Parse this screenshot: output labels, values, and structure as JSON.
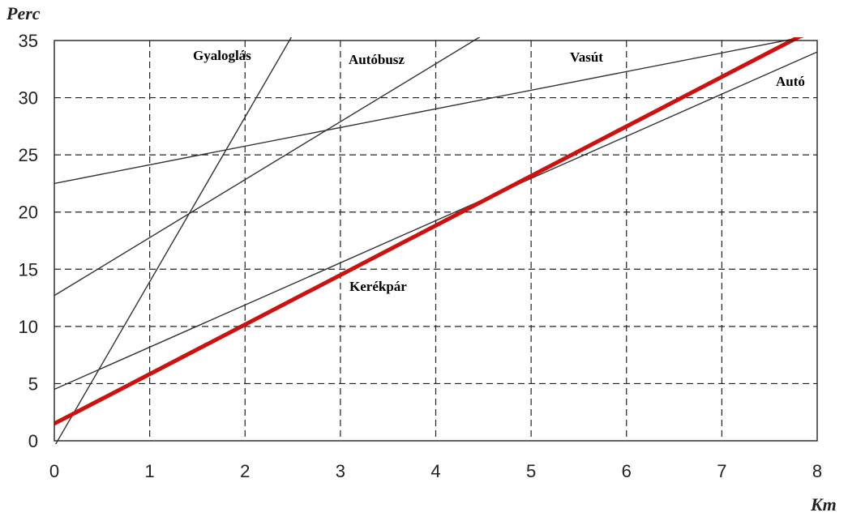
{
  "chart_data": {
    "type": "line",
    "xlabel": "Km",
    "ylabel": "Perc",
    "xlim": [
      0,
      8
    ],
    "ylim": [
      0,
      35
    ],
    "x_ticks": [
      0,
      1,
      2,
      3,
      4,
      5,
      6,
      7,
      8
    ],
    "y_ticks": [
      0,
      5,
      10,
      15,
      20,
      25,
      30,
      35
    ],
    "grid": true,
    "series": [
      {
        "name": "Gyaloglás",
        "x": [
          0,
          2.5
        ],
        "y": [
          -0.5,
          35.5
        ],
        "color": "#333333"
      },
      {
        "name": "Autóbusz",
        "x": [
          0,
          4.5
        ],
        "y": [
          12.7,
          35.5
        ],
        "color": "#333333"
      },
      {
        "name": "Vasút",
        "x": [
          0,
          7.85
        ],
        "y": [
          22.5,
          35.3
        ],
        "color": "#333333"
      },
      {
        "name": "Autó",
        "x": [
          0,
          8
        ],
        "y": [
          4.5,
          34
        ],
        "color": "#333333"
      },
      {
        "name": "Kerékpár",
        "x": [
          0,
          7.85
        ],
        "y": [
          1.5,
          35.5
        ],
        "color": "#cc1111"
      }
    ]
  }
}
